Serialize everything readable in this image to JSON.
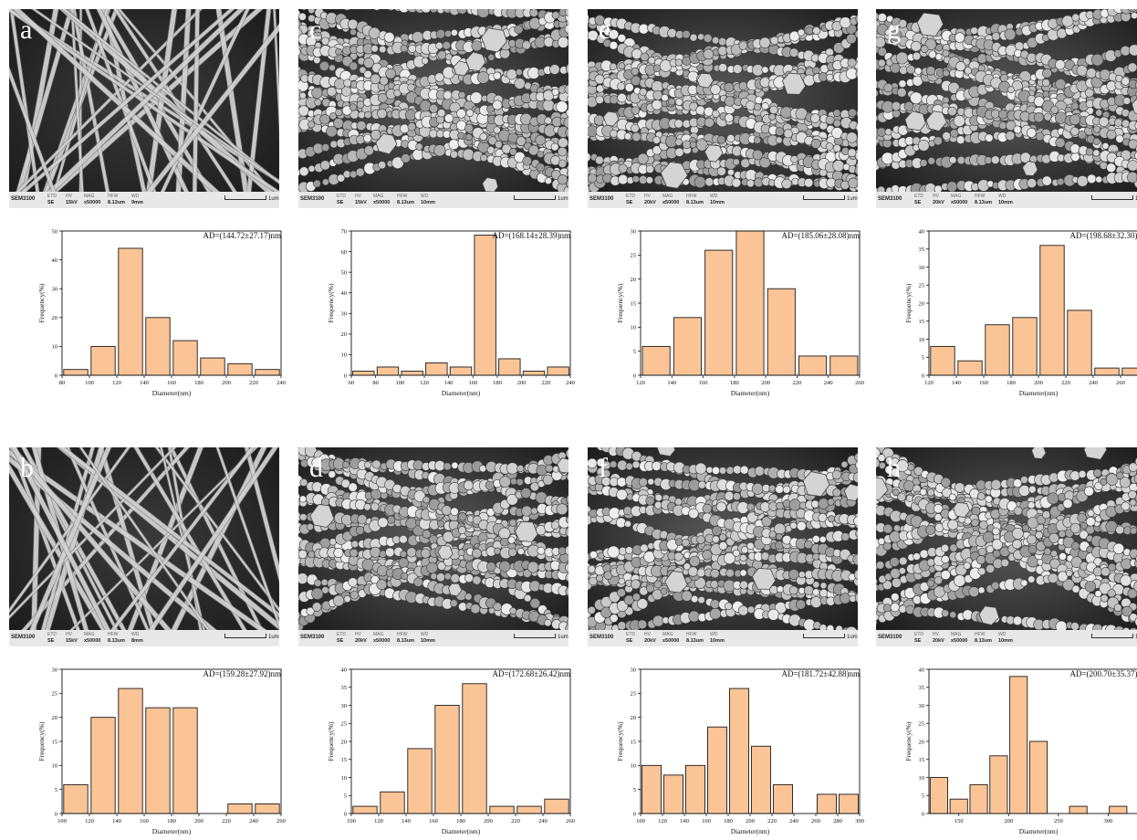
{
  "figure": {
    "sem_info": {
      "instrument": "SEM3100",
      "det_label": "ETD",
      "det_value": "SE",
      "hv_label": "HV",
      "mag_label": "MAG",
      "mag_value": "x50000",
      "hfw_label": "HFW",
      "hfw_value": "8.13um",
      "wd_label": "WD",
      "scale_text": "1um"
    },
    "bar_color": "#fbc497",
    "bar_stroke": "#1a1a1a"
  },
  "panels": [
    {
      "letter": "a",
      "hv_value": "15kV",
      "wd_value": "9mm",
      "scene": "thin"
    },
    {
      "letter": "b",
      "hv_value": "15kV",
      "wd_value": "8mm",
      "scene": "thin"
    },
    {
      "letter": "c",
      "hv_value": "15kV",
      "wd_value": "10mm",
      "scene": "beaded"
    },
    {
      "letter": "d",
      "hv_value": "20kV",
      "wd_value": "10mm",
      "scene": "beaded"
    },
    {
      "letter": "e",
      "hv_value": "20kV",
      "wd_value": "10mm",
      "scene": "beaded"
    },
    {
      "letter": "f",
      "hv_value": "20kV",
      "wd_value": "10mm",
      "scene": "beaded"
    },
    {
      "letter": "g",
      "hv_value": "20kV",
      "wd_value": "10mm",
      "scene": "beaded"
    },
    {
      "letter": "h",
      "hv_value": "20kV",
      "wd_value": "10mm",
      "scene": "beaded"
    }
  ],
  "chart_data": [
    {
      "type": "bar",
      "panel": "a",
      "title": "AD=(144.72±27.17)nm",
      "xlabel": "Diameter(nm)",
      "ylabel": "Frequency(%)",
      "xlim": [
        80,
        240
      ],
      "ylim": [
        0,
        50
      ],
      "xticks": [
        80,
        100,
        120,
        140,
        160,
        180,
        200,
        220,
        240
      ],
      "yticks": [
        0,
        10,
        20,
        30,
        40,
        50
      ],
      "x": [
        90,
        110,
        130,
        150,
        170,
        190,
        210,
        230
      ],
      "values": [
        2,
        10,
        44,
        20,
        12,
        6,
        4,
        2
      ],
      "bin_width": 20
    },
    {
      "type": "bar",
      "panel": "b",
      "title": "AD=(159.28±27.92)nm",
      "xlabel": "Diameter(nm)",
      "ylabel": "Frequency(%)",
      "xlim": [
        100,
        260
      ],
      "ylim": [
        0,
        30
      ],
      "xticks": [
        100,
        120,
        140,
        160,
        180,
        200,
        220,
        240,
        260
      ],
      "yticks": [
        0,
        5,
        10,
        15,
        20,
        25,
        30
      ],
      "x": [
        110,
        130,
        150,
        170,
        190,
        210,
        230,
        250
      ],
      "values": [
        6,
        20,
        26,
        22,
        22,
        0,
        2,
        2
      ],
      "bin_width": 20
    },
    {
      "type": "bar",
      "panel": "c",
      "title": "AD=(168.14±28.39)nm",
      "xlabel": "Diameter(nm)",
      "ylabel": "Frequency(%)",
      "xlim": [
        60,
        240
      ],
      "ylim": [
        0,
        70
      ],
      "xticks": [
        60,
        80,
        100,
        120,
        140,
        160,
        180,
        200,
        220,
        240
      ],
      "yticks": [
        0,
        10,
        20,
        30,
        40,
        50,
        60,
        70
      ],
      "x": [
        70,
        90,
        110,
        130,
        150,
        170,
        190,
        210,
        230
      ],
      "values": [
        2,
        4,
        2,
        6,
        4,
        68,
        8,
        2,
        4
      ],
      "bin_width": 20
    },
    {
      "type": "bar",
      "panel": "d",
      "title": "AD=(172.68±26.42)nm",
      "xlabel": "Diameter(nm)",
      "ylabel": "Frequency(%)",
      "xlim": [
        100,
        260
      ],
      "ylim": [
        0,
        40
      ],
      "xticks": [
        100,
        120,
        140,
        160,
        180,
        200,
        220,
        240,
        260
      ],
      "yticks": [
        0,
        5,
        10,
        15,
        20,
        25,
        30,
        35,
        40
      ],
      "x": [
        110,
        130,
        150,
        170,
        190,
        210,
        230,
        250
      ],
      "values": [
        2,
        6,
        18,
        30,
        36,
        2,
        2,
        4
      ],
      "bin_width": 20
    },
    {
      "type": "bar",
      "panel": "e",
      "title": "AD=(185.06±28.08)nm",
      "xlabel": "Diameter(nm)",
      "ylabel": "Frequency(%)",
      "xlim": [
        120,
        260
      ],
      "ylim": [
        0,
        30
      ],
      "xticks": [
        120,
        140,
        160,
        180,
        200,
        220,
        240,
        260
      ],
      "yticks": [
        0,
        5,
        10,
        15,
        20,
        25,
        30
      ],
      "x": [
        130,
        150,
        170,
        190,
        210,
        230,
        250
      ],
      "values": [
        6,
        12,
        26,
        30,
        18,
        4,
        4
      ],
      "bin_width": 20
    },
    {
      "type": "bar",
      "panel": "f",
      "title": "AD=(181.72±42.88)nm",
      "xlabel": "Diameter(nm)",
      "ylabel": "Frequency(%)",
      "xlim": [
        100,
        300
      ],
      "ylim": [
        0,
        30
      ],
      "xticks": [
        100,
        120,
        140,
        160,
        180,
        200,
        220,
        240,
        260,
        280,
        300
      ],
      "yticks": [
        0,
        5,
        10,
        15,
        20,
        25,
        30
      ],
      "x": [
        110,
        130,
        150,
        170,
        190,
        210,
        230,
        250,
        270,
        290
      ],
      "values": [
        10,
        8,
        10,
        18,
        26,
        14,
        6,
        0,
        4,
        4
      ],
      "bin_width": 20
    },
    {
      "type": "bar",
      "panel": "g",
      "title": "AD=(198.68±32.30)nm",
      "xlabel": "Diameter(nm)",
      "ylabel": "Frequency(%)",
      "xlim": [
        120,
        280
      ],
      "ylim": [
        0,
        40
      ],
      "xticks": [
        120,
        140,
        160,
        180,
        200,
        220,
        240,
        260,
        280
      ],
      "yticks": [
        0,
        5,
        10,
        15,
        20,
        25,
        30,
        35,
        40
      ],
      "x": [
        130,
        150,
        170,
        190,
        210,
        230,
        250,
        270
      ],
      "values": [
        8,
        4,
        14,
        16,
        36,
        18,
        2,
        2
      ],
      "bin_width": 20
    },
    {
      "type": "bar",
      "panel": "h",
      "title": "AD=(200.70±35.37)nm",
      "xlabel": "Diameter(nm)",
      "ylabel": "Frequency(%)",
      "xlim": [
        120,
        340
      ],
      "ylim": [
        0,
        40
      ],
      "xticks": [
        150,
        200,
        250,
        300
      ],
      "yticks": [
        0,
        5,
        10,
        15,
        20,
        25,
        30,
        35,
        40
      ],
      "x": [
        130,
        150,
        170,
        190,
        210,
        230,
        250,
        270,
        290,
        310
      ],
      "values": [
        10,
        4,
        8,
        16,
        38,
        20,
        0,
        2,
        0,
        2
      ],
      "bin_width": 20
    }
  ]
}
